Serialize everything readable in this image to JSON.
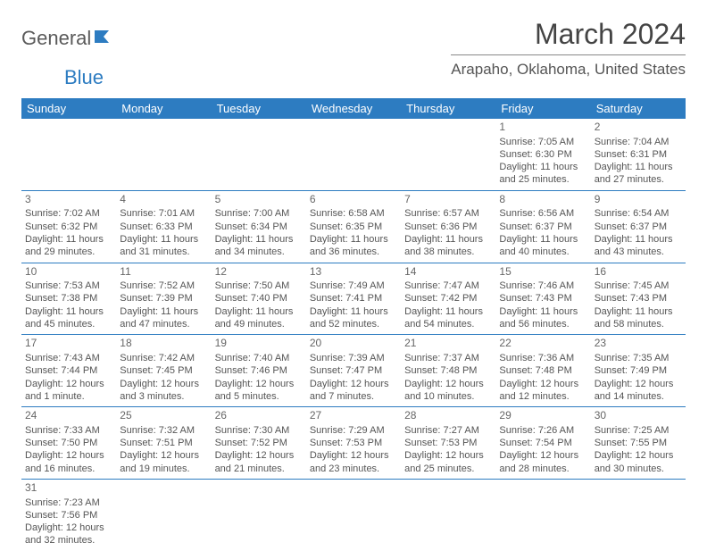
{
  "logo": {
    "text_a": "General",
    "text_b": "Blue"
  },
  "title": "March 2024",
  "location": "Arapaho, Oklahoma, United States",
  "colors": {
    "header_bg": "#2d7cc1",
    "header_fg": "#ffffff",
    "rule": "#2d7cc1",
    "text": "#555555"
  },
  "weekdays": [
    "Sunday",
    "Monday",
    "Tuesday",
    "Wednesday",
    "Thursday",
    "Friday",
    "Saturday"
  ],
  "weeks": [
    [
      null,
      null,
      null,
      null,
      null,
      {
        "d": "1",
        "sr": "7:05 AM",
        "ss": "6:30 PM",
        "dl": "11 hours and 25 minutes."
      },
      {
        "d": "2",
        "sr": "7:04 AM",
        "ss": "6:31 PM",
        "dl": "11 hours and 27 minutes."
      }
    ],
    [
      {
        "d": "3",
        "sr": "7:02 AM",
        "ss": "6:32 PM",
        "dl": "11 hours and 29 minutes."
      },
      {
        "d": "4",
        "sr": "7:01 AM",
        "ss": "6:33 PM",
        "dl": "11 hours and 31 minutes."
      },
      {
        "d": "5",
        "sr": "7:00 AM",
        "ss": "6:34 PM",
        "dl": "11 hours and 34 minutes."
      },
      {
        "d": "6",
        "sr": "6:58 AM",
        "ss": "6:35 PM",
        "dl": "11 hours and 36 minutes."
      },
      {
        "d": "7",
        "sr": "6:57 AM",
        "ss": "6:36 PM",
        "dl": "11 hours and 38 minutes."
      },
      {
        "d": "8",
        "sr": "6:56 AM",
        "ss": "6:37 PM",
        "dl": "11 hours and 40 minutes."
      },
      {
        "d": "9",
        "sr": "6:54 AM",
        "ss": "6:37 PM",
        "dl": "11 hours and 43 minutes."
      }
    ],
    [
      {
        "d": "10",
        "sr": "7:53 AM",
        "ss": "7:38 PM",
        "dl": "11 hours and 45 minutes."
      },
      {
        "d": "11",
        "sr": "7:52 AM",
        "ss": "7:39 PM",
        "dl": "11 hours and 47 minutes."
      },
      {
        "d": "12",
        "sr": "7:50 AM",
        "ss": "7:40 PM",
        "dl": "11 hours and 49 minutes."
      },
      {
        "d": "13",
        "sr": "7:49 AM",
        "ss": "7:41 PM",
        "dl": "11 hours and 52 minutes."
      },
      {
        "d": "14",
        "sr": "7:47 AM",
        "ss": "7:42 PM",
        "dl": "11 hours and 54 minutes."
      },
      {
        "d": "15",
        "sr": "7:46 AM",
        "ss": "7:43 PM",
        "dl": "11 hours and 56 minutes."
      },
      {
        "d": "16",
        "sr": "7:45 AM",
        "ss": "7:43 PM",
        "dl": "11 hours and 58 minutes."
      }
    ],
    [
      {
        "d": "17",
        "sr": "7:43 AM",
        "ss": "7:44 PM",
        "dl": "12 hours and 1 minute."
      },
      {
        "d": "18",
        "sr": "7:42 AM",
        "ss": "7:45 PM",
        "dl": "12 hours and 3 minutes."
      },
      {
        "d": "19",
        "sr": "7:40 AM",
        "ss": "7:46 PM",
        "dl": "12 hours and 5 minutes."
      },
      {
        "d": "20",
        "sr": "7:39 AM",
        "ss": "7:47 PM",
        "dl": "12 hours and 7 minutes."
      },
      {
        "d": "21",
        "sr": "7:37 AM",
        "ss": "7:48 PM",
        "dl": "12 hours and 10 minutes."
      },
      {
        "d": "22",
        "sr": "7:36 AM",
        "ss": "7:48 PM",
        "dl": "12 hours and 12 minutes."
      },
      {
        "d": "23",
        "sr": "7:35 AM",
        "ss": "7:49 PM",
        "dl": "12 hours and 14 minutes."
      }
    ],
    [
      {
        "d": "24",
        "sr": "7:33 AM",
        "ss": "7:50 PM",
        "dl": "12 hours and 16 minutes."
      },
      {
        "d": "25",
        "sr": "7:32 AM",
        "ss": "7:51 PM",
        "dl": "12 hours and 19 minutes."
      },
      {
        "d": "26",
        "sr": "7:30 AM",
        "ss": "7:52 PM",
        "dl": "12 hours and 21 minutes."
      },
      {
        "d": "27",
        "sr": "7:29 AM",
        "ss": "7:53 PM",
        "dl": "12 hours and 23 minutes."
      },
      {
        "d": "28",
        "sr": "7:27 AM",
        "ss": "7:53 PM",
        "dl": "12 hours and 25 minutes."
      },
      {
        "d": "29",
        "sr": "7:26 AM",
        "ss": "7:54 PM",
        "dl": "12 hours and 28 minutes."
      },
      {
        "d": "30",
        "sr": "7:25 AM",
        "ss": "7:55 PM",
        "dl": "12 hours and 30 minutes."
      }
    ],
    [
      {
        "d": "31",
        "sr": "7:23 AM",
        "ss": "7:56 PM",
        "dl": "12 hours and 32 minutes."
      },
      null,
      null,
      null,
      null,
      null,
      null
    ]
  ],
  "labels": {
    "sunrise": "Sunrise: ",
    "sunset": "Sunset: ",
    "daylight": "Daylight: "
  }
}
